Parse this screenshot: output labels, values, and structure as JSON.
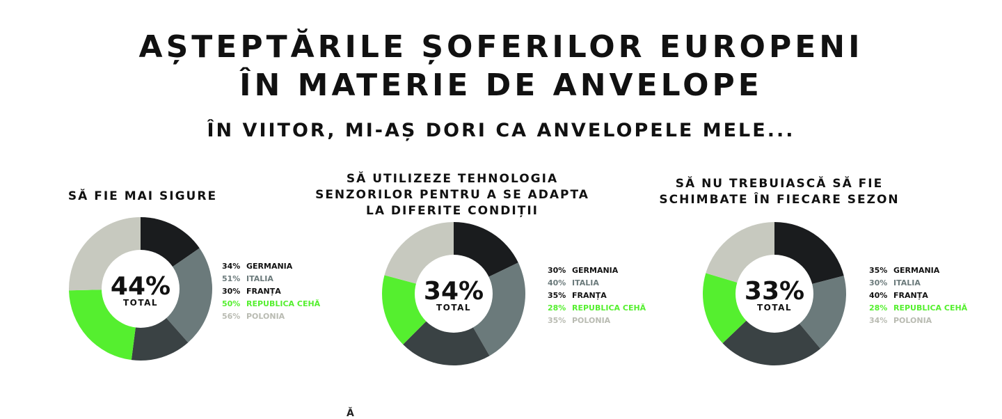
{
  "header": {
    "title_lines": [
      "AȘTEPTĂRILE ȘOFERILOR EUROPENI",
      "ÎN MATERIE DE ANVELOPE"
    ],
    "subtitle": "ÎN VIITOR, MI-AȘ DORI CA ANVELOPELE MELE..."
  },
  "colors": {
    "germania": "#1a1c1e",
    "italia": "#6b7a7b",
    "franta": "#3a4244",
    "republica_ceha": "#55ef2f",
    "polonia": "#c7c9bf"
  },
  "chart_data": [
    {
      "type": "pie",
      "title": "SĂ FIE MAI SIGURE",
      "total_value": "44%",
      "total_label": "TOTAL",
      "categories": [
        "GERMANIA",
        "ITALIA",
        "FRANȚA",
        "REPUBLICA CEHĂ",
        "POLONIA"
      ],
      "values": [
        34,
        51,
        30,
        50,
        56
      ],
      "labels": [
        "34%",
        "51%",
        "30%",
        "50%",
        "56%"
      ]
    },
    {
      "type": "pie",
      "title": "SĂ UTILIZEZE TEHNOLOGIA SENZORILOR PENTRU A SE ADAPTA LA DIFERITE CONDIȚII",
      "title_lines": [
        "SĂ UTILIZEZE TEHNOLOGIA",
        "SENZORILOR PENTRU A SE ADAPTA",
        "LA DIFERITE CONDIȚII"
      ],
      "total_value": "34%",
      "total_label": "TOTAL",
      "categories": [
        "GERMANIA",
        "ITALIA",
        "FRANȚA",
        "REPUBLICA CEHĂ",
        "POLONIA"
      ],
      "values": [
        30,
        40,
        35,
        28,
        35
      ],
      "labels": [
        "30%",
        "40%",
        "35%",
        "28%",
        "35%"
      ]
    },
    {
      "type": "pie",
      "title": "SĂ NU TREBUIASCĂ SĂ FIE SCHIMBATE ÎN FIECARE SEZON",
      "title_lines": [
        "SĂ NU TREBUIASCĂ SĂ FIE",
        "SCHIMBATE ÎN FIECARE SEZON"
      ],
      "total_value": "33%",
      "total_label": "TOTAL",
      "categories": [
        "GERMANIA",
        "ITALIA",
        "FRANȚA",
        "REPUBLICA CEHĂ",
        "POLONIA"
      ],
      "values": [
        35,
        30,
        40,
        28,
        34
      ],
      "labels": [
        "35%",
        "30%",
        "40%",
        "28%",
        "34%"
      ]
    }
  ],
  "footer": {
    "glyph": "Ă"
  }
}
